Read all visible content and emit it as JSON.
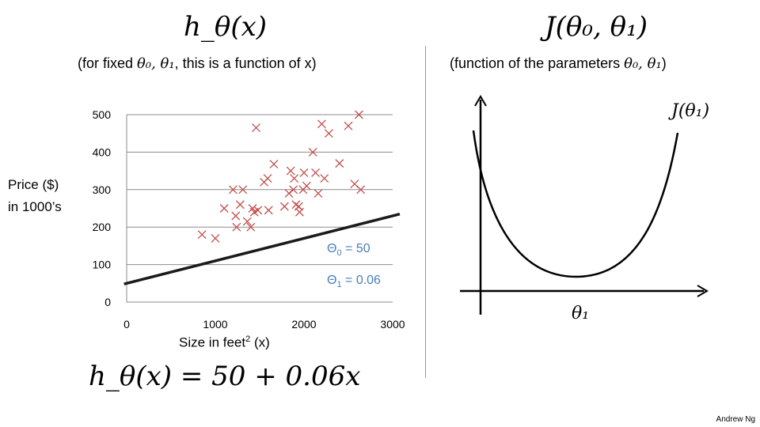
{
  "slide": {
    "left_title": "h_θ(x)",
    "right_title": "J(θ₀, θ₁)",
    "left_subtitle_pre": "(for fixed ",
    "left_subtitle_sym": "θ₀, θ₁",
    "left_subtitle_post": ", this is a function of x)",
    "right_subtitle_pre": "(function of the parameters ",
    "right_subtitle_sym": "θ₀, θ₁",
    "right_subtitle_post": ")",
    "hypothesis_equation": "h_θ(x) = 50 + 0.06x",
    "author": "Andrew Ng"
  },
  "chart_data": [
    {
      "type": "scatter",
      "title": "",
      "xlabel": "Size in feet² (x)",
      "xlabel_pre": "Size in feet",
      "xlabel_sup": "2",
      "xlabel_post": " (x)",
      "ylabel_line1": "Price ($)",
      "ylabel_line2": "in 1000’s",
      "xlim": [
        0,
        3000
      ],
      "ylim": [
        0,
        500
      ],
      "x_ticks": [
        "0",
        "1000",
        "2000",
        "3000"
      ],
      "y_ticks": [
        "0",
        "100",
        "200",
        "300",
        "400",
        "500"
      ],
      "grid": "horizontal",
      "marker": "x",
      "marker_color": "#c0504d",
      "line_color": "#1a1a1a",
      "points": [
        [
          850,
          180
        ],
        [
          1000,
          170
        ],
        [
          1100,
          250
        ],
        [
          1200,
          300
        ],
        [
          1230,
          230
        ],
        [
          1240,
          200
        ],
        [
          1280,
          260
        ],
        [
          1310,
          300
        ],
        [
          1360,
          215
        ],
        [
          1400,
          200
        ],
        [
          1420,
          250
        ],
        [
          1440,
          240
        ],
        [
          1460,
          465
        ],
        [
          1480,
          245
        ],
        [
          1550,
          320
        ],
        [
          1590,
          330
        ],
        [
          1600,
          245
        ],
        [
          1660,
          368
        ],
        [
          1780,
          255
        ],
        [
          1830,
          290
        ],
        [
          1850,
          350
        ],
        [
          1880,
          300
        ],
        [
          1890,
          330
        ],
        [
          1910,
          260
        ],
        [
          1940,
          255
        ],
        [
          1950,
          240
        ],
        [
          1990,
          300
        ],
        [
          2000,
          345
        ],
        [
          2030,
          310
        ],
        [
          2100,
          400
        ],
        [
          2130,
          345
        ],
        [
          2160,
          290
        ],
        [
          2200,
          475
        ],
        [
          2230,
          330
        ],
        [
          2280,
          450
        ],
        [
          2400,
          370
        ],
        [
          2500,
          470
        ],
        [
          2570,
          315
        ],
        [
          2620,
          500
        ],
        [
          2640,
          300
        ]
      ],
      "hypothesis": {
        "theta0": 50,
        "theta1": 0.06,
        "x_range": [
          -30,
          3080
        ]
      },
      "annotations": [
        {
          "pre": "Θ",
          "sub": "0",
          "post": " = 50"
        },
        {
          "pre": "Θ",
          "sub": "1",
          "post": " = 0.06"
        }
      ]
    },
    {
      "type": "line",
      "title": "",
      "curve_label": "J(θ₁)",
      "xlabel": "θ₁",
      "shape": "parabola",
      "axis_color": "#000000",
      "curve_color": "#000000"
    }
  ]
}
